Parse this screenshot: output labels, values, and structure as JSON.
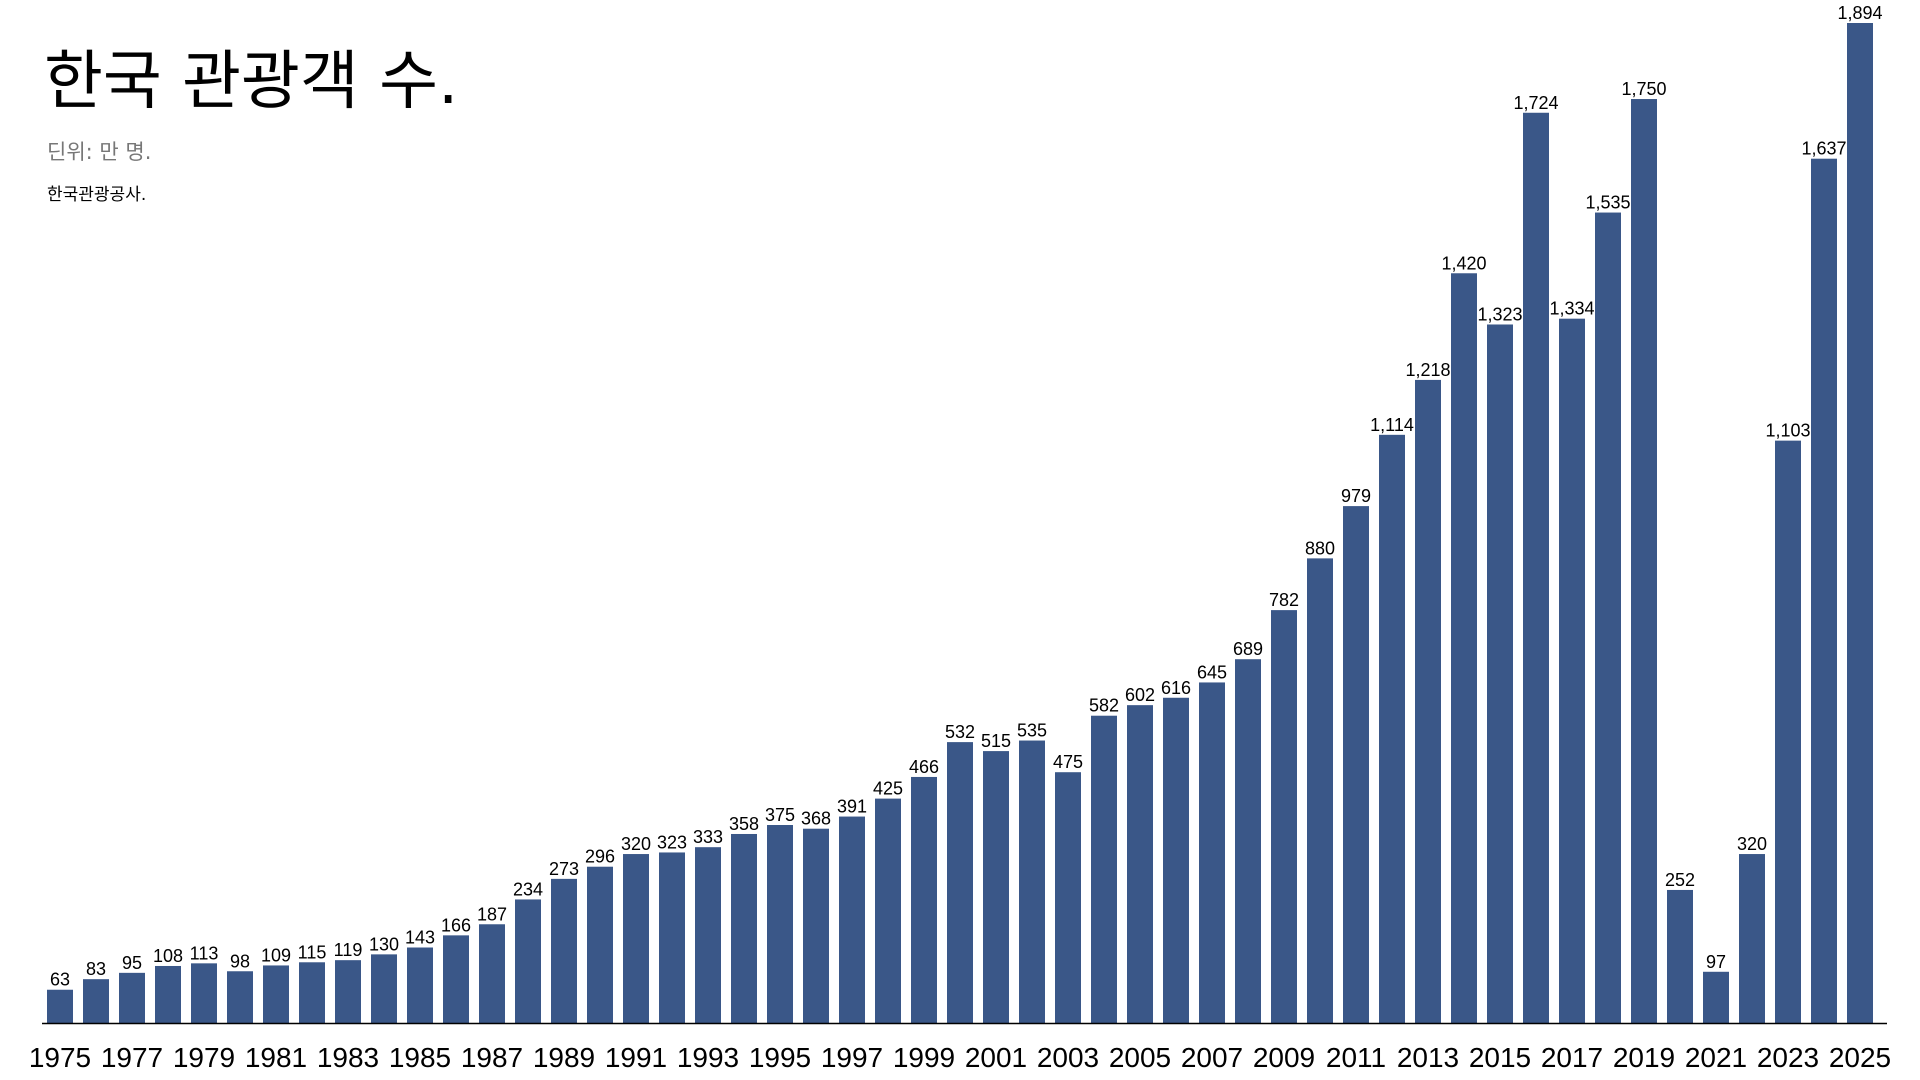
{
  "chart_data": {
    "type": "bar",
    "title": "한국 관광객 수.",
    "subtitle": "딘위: 만 명.",
    "source": "한국관광공사.",
    "xlabel": "",
    "ylabel": "",
    "ylim": [
      0,
      1894
    ],
    "grid": false,
    "bar_color": "#3a5788",
    "categories": [
      "1975",
      "1976",
      "1977",
      "1978",
      "1979",
      "1980",
      "1981",
      "1982",
      "1983",
      "1984",
      "1985",
      "1986",
      "1987",
      "1988",
      "1989",
      "1990",
      "1991",
      "1992",
      "1993",
      "1994",
      "1995",
      "1996",
      "1997",
      "1998",
      "1999",
      "2000",
      "2001",
      "2002",
      "2003",
      "2004",
      "2005",
      "2006",
      "2007",
      "2008",
      "2009",
      "2010",
      "2011",
      "2012",
      "2013",
      "2014",
      "2015",
      "2016",
      "2017",
      "2018",
      "2019",
      "2020",
      "2021",
      "2022",
      "2023",
      "2024",
      "2025"
    ],
    "values": [
      63,
      83,
      95,
      108,
      113,
      98,
      109,
      115,
      119,
      130,
      143,
      166,
      187,
      234,
      273,
      296,
      320,
      323,
      333,
      358,
      375,
      368,
      391,
      425,
      466,
      532,
      515,
      535,
      475,
      582,
      602,
      616,
      645,
      689,
      782,
      880,
      979,
      1114,
      1218,
      1420,
      1323,
      1724,
      1334,
      1535,
      1750,
      252,
      97,
      320,
      1103,
      1637,
      1894
    ],
    "value_labels": [
      "63",
      "83",
      "95",
      "108",
      "113",
      "98",
      "109",
      "115",
      "119",
      "130",
      "143",
      "166",
      "187",
      "234",
      "273",
      "296",
      "320",
      "323",
      "333",
      "358",
      "375",
      "368",
      "391",
      "425",
      "466",
      "532",
      "515",
      "535",
      "475",
      "582",
      "602",
      "616",
      "645",
      "689",
      "782",
      "880",
      "979",
      "1,114",
      "1,218",
      "1,420",
      "1,323",
      "1,724",
      "1,334",
      "1,535",
      "1,750",
      "252",
      "97",
      "320",
      "1,103",
      "1,637",
      "1,894"
    ],
    "tick_labels": [
      "1975",
      "1977",
      "1979",
      "1981",
      "1983",
      "1985",
      "1987",
      "1989",
      "1991",
      "1993",
      "1995",
      "1997",
      "1999",
      "2001",
      "2003",
      "2005",
      "2007",
      "2009",
      "2011",
      "2013",
      "2015",
      "2017",
      "2019",
      "2021",
      "2023",
      "2025"
    ]
  }
}
